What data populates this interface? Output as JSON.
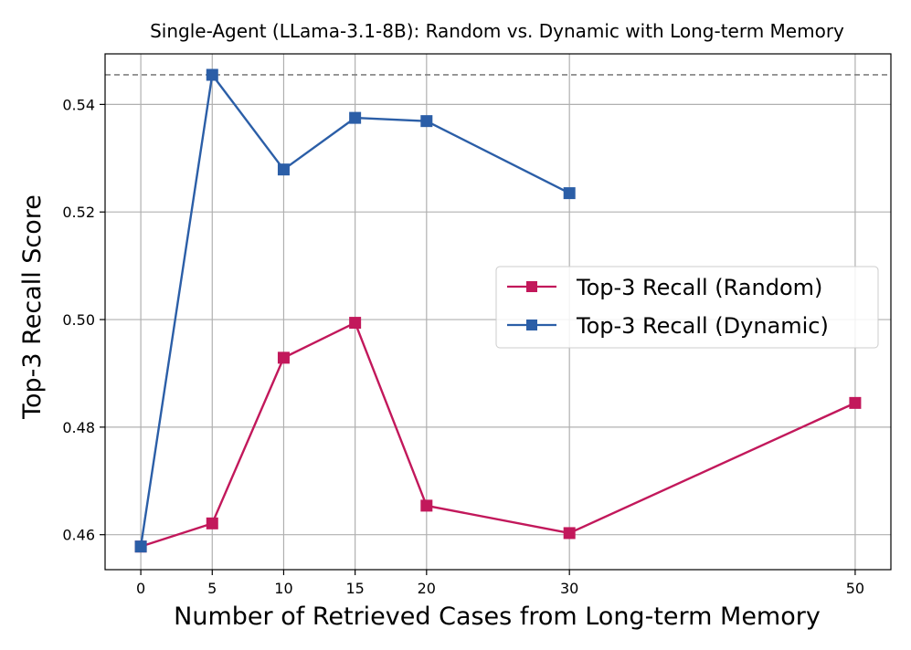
{
  "chart_data": {
    "type": "line",
    "title": "Single-Agent (LLama-3.1-8B): Random vs. Dynamic with Long-term Memory",
    "xlabel": "Number of Retrieved Cases from Long-term Memory",
    "ylabel": "Top-3 Recall Score",
    "x_ticks": [
      0,
      5,
      10,
      15,
      20,
      30,
      50
    ],
    "y_ticks": [
      0.46,
      0.48,
      0.5,
      0.52,
      0.54
    ],
    "y_tick_labels": [
      "0.46",
      "0.48",
      "0.50",
      "0.52",
      "0.54"
    ],
    "xlim": [
      -2.5,
      52.5
    ],
    "ylim": [
      0.4535,
      0.5494
    ],
    "grid": true,
    "legend_position": "center-right",
    "reference_line": {
      "y": 0.5455,
      "style": "dashed",
      "color": "#808080"
    },
    "series": [
      {
        "name": "Top-3 Recall (Random)",
        "color": "#c2185b",
        "marker": "square",
        "x": [
          0,
          5,
          10,
          15,
          20,
          30,
          50
        ],
        "y": [
          0.4578,
          0.4621,
          0.4929,
          0.4994,
          0.4654,
          0.4603,
          0.4845
        ]
      },
      {
        "name": "Top-3 Recall (Dynamic)",
        "color": "#2b5ea7",
        "marker": "square",
        "x": [
          0,
          5,
          10,
          15,
          20,
          30
        ],
        "y": [
          0.4578,
          0.5455,
          0.5279,
          0.5375,
          0.5369,
          0.5235
        ]
      }
    ]
  }
}
